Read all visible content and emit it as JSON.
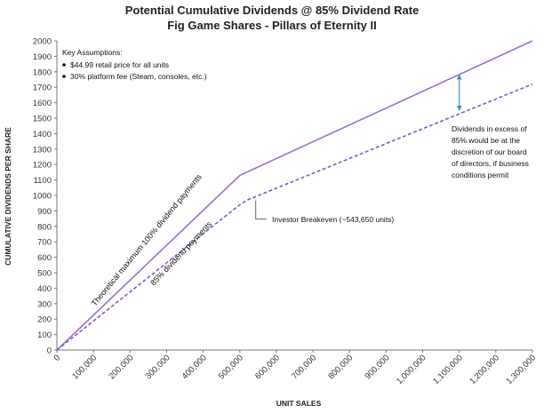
{
  "chart_data": {
    "type": "line",
    "title": "Potential Cumulative Dividends @ 85% Dividend Rate",
    "subtitle": "Fig Game Shares - Pillars of Eternity II",
    "xlabel": "UNIT SALES",
    "ylabel": "CUMULATIVE DIVIDENDS PER SHARE",
    "xlim": [
      0,
      1300000
    ],
    "ylim": [
      0,
      2000
    ],
    "y_ticks": [
      0,
      100,
      200,
      300,
      400,
      500,
      600,
      700,
      800,
      900,
      1000,
      1100,
      1200,
      1300,
      1400,
      1500,
      1600,
      1700,
      1800,
      1900,
      2000
    ],
    "y_tick_labels": [
      "0",
      "100",
      "200",
      "300",
      "400",
      "500",
      "600",
      "700",
      "800",
      "900",
      "1000",
      "1100",
      "1200",
      "1300",
      "1400",
      "1500",
      "1600",
      "1700",
      "1800",
      "1900",
      "2000"
    ],
    "x_ticks": [
      0,
      100000,
      200000,
      300000,
      400000,
      500000,
      600000,
      700000,
      800000,
      900000,
      1000000,
      1100000,
      1200000,
      1300000
    ],
    "x_tick_labels": [
      "0",
      "100,000",
      "200,000",
      "300,000",
      "400,000",
      "500,000",
      "600,000",
      "700,000",
      "800,000",
      "900,000",
      "1,000,000",
      "1,100,000",
      "1,200,000",
      "1,300,000"
    ],
    "grid": false,
    "series": [
      {
        "label": "Theoretical maximum 100% dividend payments",
        "style": "solid",
        "color": "#9b6fcf",
        "x": [
          0,
          500000,
          1300000
        ],
        "y": [
          0,
          1130,
          2000
        ]
      },
      {
        "label": "85% dividend payments",
        "style": "dashed",
        "color": "#8a57c2",
        "x": [
          0,
          500000,
          520000,
          1300000
        ],
        "y": [
          0,
          940,
          970,
          1720
        ]
      }
    ],
    "key_assumptions": {
      "heading": "Key Assumptions:",
      "items": [
        "$44.99 retail price for all units",
        "30% platform fee (Steam, consoles, etc.)"
      ]
    },
    "annotations": {
      "breakeven": "Investor Breakeven (~543,650 units)",
      "breakeven_x": 543650,
      "breakeven_y": 985,
      "excess_lines": [
        "Dividends in excess of",
        "85% would be at the",
        "discretion of our board",
        "of directors, if business",
        "conditions permit"
      ],
      "arrow_x": 1100000,
      "arrow_top_y": 1790,
      "arrow_bottom_y": 1540
    },
    "colors": {
      "solid_line": "#9b6fcf",
      "dashed_line": "#8a57c2",
      "arrow": "#4a90c8",
      "axis": "#777777"
    }
  }
}
